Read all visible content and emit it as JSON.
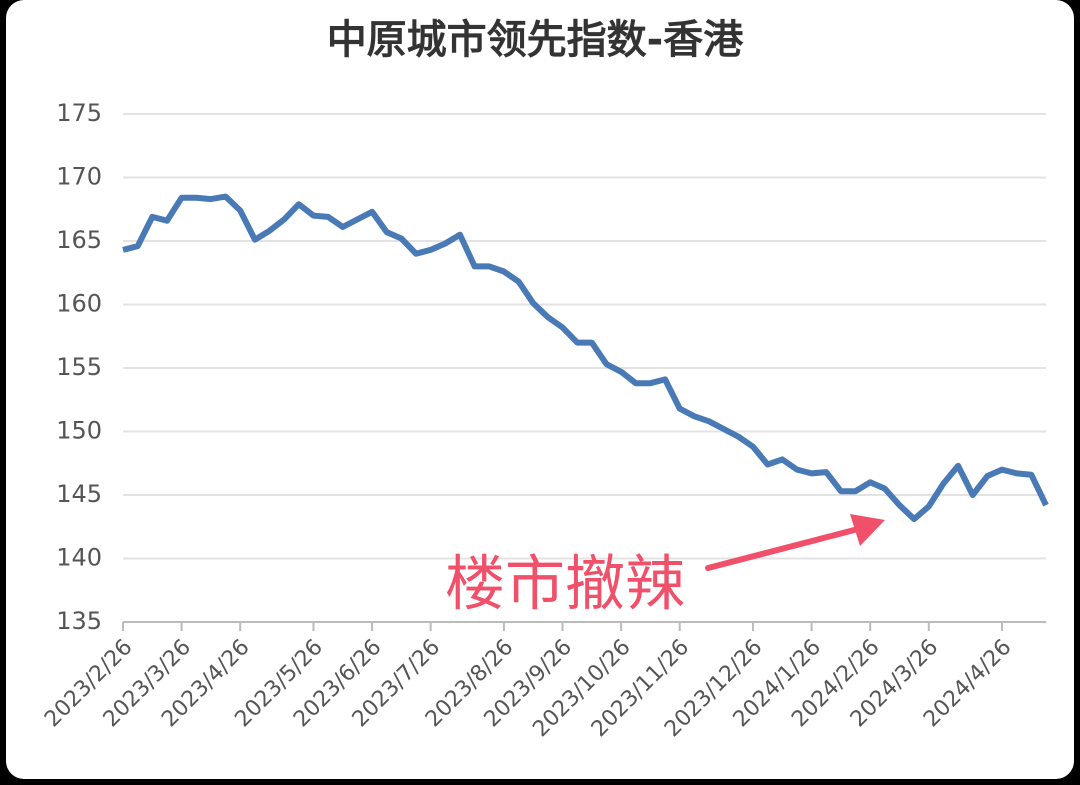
{
  "chart_data": {
    "type": "line",
    "title": "中原城市领先指数-香港",
    "categories": [
      "2023/2/26",
      null,
      null,
      null,
      "2023/3/26",
      null,
      null,
      null,
      "2023/4/26",
      null,
      null,
      null,
      null,
      "2023/5/26",
      null,
      null,
      null,
      "2023/6/26",
      null,
      null,
      null,
      "2023/7/26",
      null,
      null,
      null,
      null,
      "2023/8/26",
      null,
      null,
      null,
      "2023/9/26",
      null,
      null,
      null,
      "2023/10/26",
      null,
      null,
      null,
      "2023/11/26",
      null,
      null,
      null,
      null,
      "2023/12/26",
      null,
      null,
      null,
      "2024/1/26",
      null,
      null,
      null,
      "2024/2/26",
      null,
      null,
      null,
      "2024/3/26",
      null,
      null,
      null,
      null,
      "2024/4/26",
      null,
      null,
      null
    ],
    "values": [
      164.3,
      164.6,
      166.9,
      166.6,
      168.4,
      168.4,
      168.3,
      168.5,
      167.4,
      165.1,
      165.8,
      166.7,
      167.9,
      167.0,
      166.9,
      166.1,
      166.7,
      167.3,
      165.7,
      165.2,
      164.0,
      164.3,
      164.8,
      165.5,
      163.0,
      163.0,
      162.6,
      161.8,
      160.1,
      159.0,
      158.2,
      157.0,
      157.0,
      155.3,
      154.7,
      153.8,
      153.8,
      154.1,
      151.8,
      151.2,
      150.8,
      150.2,
      149.6,
      148.8,
      147.4,
      147.8,
      147.0,
      146.7,
      146.8,
      145.3,
      145.3,
      146.0,
      145.5,
      144.2,
      143.1,
      144.1,
      145.9,
      147.3,
      145.0,
      146.5,
      147.0,
      146.7,
      146.6,
      144.2
    ],
    "color": "#4a7ab5",
    "ylim": [
      135,
      175
    ],
    "yticks": [
      135,
      140,
      145,
      150,
      155,
      160,
      165,
      170,
      175
    ],
    "grid": true,
    "annotations": [
      {
        "text": "楼市撤辣",
        "color": "#f0506a"
      }
    ]
  }
}
